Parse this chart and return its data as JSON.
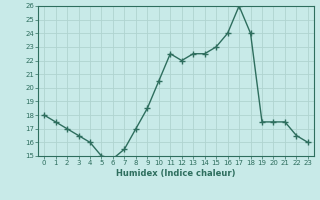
{
  "x": [
    0,
    1,
    2,
    3,
    4,
    5,
    6,
    7,
    8,
    9,
    10,
    11,
    12,
    13,
    14,
    15,
    16,
    17,
    18,
    19,
    20,
    21,
    22,
    23
  ],
  "y": [
    18,
    17.5,
    17,
    16.5,
    16,
    15,
    14.8,
    15.5,
    17,
    18.5,
    20.5,
    22.5,
    22,
    22.5,
    22.5,
    23,
    24,
    26,
    24,
    17.5,
    17.5,
    17.5,
    16.5,
    16
  ],
  "line_color": "#2e6e5e",
  "marker_color": "#2e6e5e",
  "bg_color": "#c8eae8",
  "grid_color": "#b0d4d0",
  "xlabel": "Humidex (Indice chaleur)",
  "ylim": [
    15,
    26
  ],
  "xlim": [
    -0.5,
    23.5
  ],
  "yticks": [
    15,
    16,
    17,
    18,
    19,
    20,
    21,
    22,
    23,
    24,
    25,
    26
  ],
  "xticks": [
    0,
    1,
    2,
    3,
    4,
    5,
    6,
    7,
    8,
    9,
    10,
    11,
    12,
    13,
    14,
    15,
    16,
    17,
    18,
    19,
    20,
    21,
    22,
    23
  ],
  "xtick_labels": [
    "0",
    "1",
    "2",
    "3",
    "4",
    "5",
    "6",
    "7",
    "8",
    "9",
    "10",
    "11",
    "12",
    "13",
    "14",
    "15",
    "16",
    "17",
    "18",
    "19",
    "20",
    "21",
    "22",
    "23"
  ],
  "font_color": "#2e6e5e",
  "line_width": 1.0,
  "marker_size": 4
}
